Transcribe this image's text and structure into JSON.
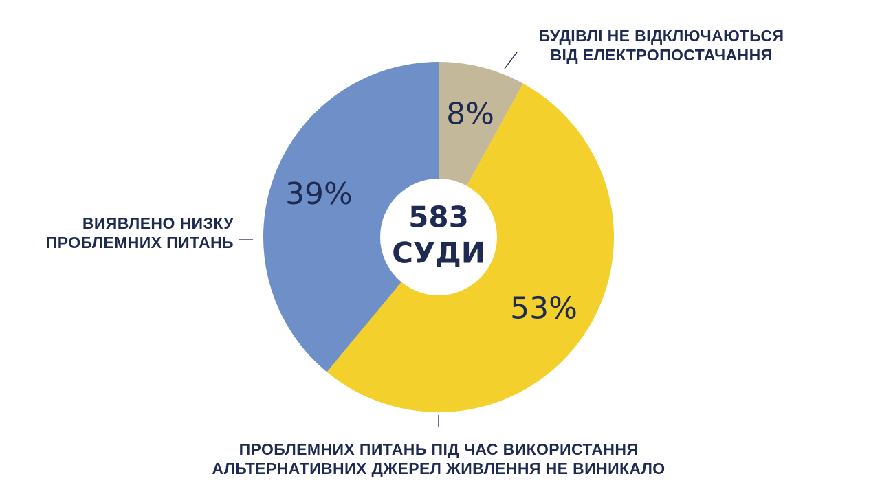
{
  "chart_data": {
    "type": "pie",
    "style": "donut",
    "title": "",
    "center": {
      "value": "583",
      "label": "СУДИ"
    },
    "slices": [
      {
        "key": "buildings",
        "name": "БУДІВЛІ НЕ ВІДКЛЮЧАЮТЬСЯ ВІД ЕЛЕКТРОПОСТАЧАННЯ",
        "name_lines": [
          "БУДІВЛІ НЕ ВІДКЛЮЧАЮТЬСЯ",
          "ВІД ЕЛЕКТРОПОСТАЧАННЯ"
        ],
        "value": 8,
        "label": "8%",
        "color": "#C4B89A"
      },
      {
        "key": "no_problems",
        "name": "ПРОБЛЕМНИХ ПИТАНЬ ПІД ЧАС ВИКОРИСТАННЯ АЛЬТЕРНАТИВНИХ ДЖЕРЕЛ ЖИВЛЕННЯ НЕ ВИНИКАЛО",
        "name_lines": [
          "ПРОБЛЕМНИХ ПИТАНЬ ПІД ЧАС ВИКОРИСТАННЯ",
          "АЛЬТЕРНАТИВНИХ ДЖЕРЕЛ ЖИВЛЕННЯ НЕ ВИНИКАЛО"
        ],
        "value": 53,
        "label": "53%",
        "color": "#F4D02C"
      },
      {
        "key": "problems",
        "name": "ВИЯВЛЕНО НИЗКУ ПРОБЛЕМНИХ ПИТАНЬ",
        "name_lines": [
          "ВИЯВЛЕНО НИЗКУ",
          "ПРОБЛЕМНИХ ПИТАНЬ"
        ],
        "value": 39,
        "label": "39%",
        "color": "#6E8FC7"
      }
    ],
    "start_angle": "12 o'clock",
    "direction": "clockwise",
    "label_text_color": "#1E2A52",
    "background": "#FFFFFF"
  }
}
